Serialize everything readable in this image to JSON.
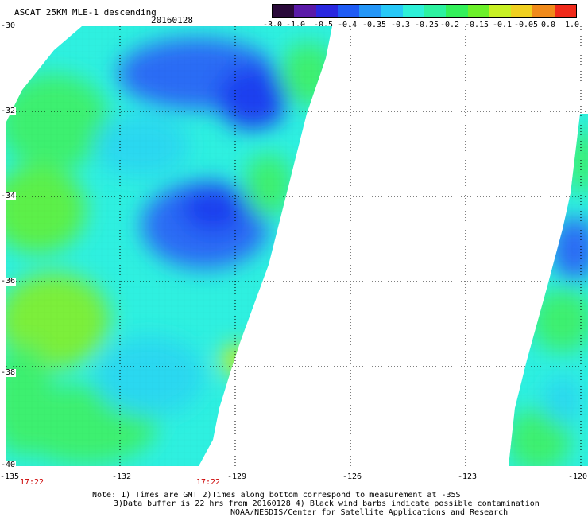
{
  "header": {
    "title": "ASCAT 25KM MLE-1 descending",
    "date": "20160128"
  },
  "colorbar": {
    "tick_labels": [
      "-3.0",
      "-1.0",
      "-0.5",
      "-0.4",
      "-0.35",
      "-0.3",
      "-0.25",
      "-0.2",
      "-0.15",
      "-0.1",
      "-0.05",
      "0.0",
      "1.0"
    ],
    "colors": [
      "#2a0a3a",
      "#5a1aa8",
      "#2a28e0",
      "#1f5cf5",
      "#2496f7",
      "#27c8f7",
      "#2ef0d8",
      "#2df2a0",
      "#34f05a",
      "#6cf02a",
      "#c8f024",
      "#f0d020",
      "#f08a1a",
      "#f02a1a"
    ]
  },
  "map": {
    "lat_labels": [
      "-30",
      "-32",
      "-34",
      "-36",
      "-38",
      "-40"
    ],
    "lon_labels": [
      "-135",
      "-132",
      "-129",
      "-126",
      "-123",
      "-120"
    ],
    "time_labels": [
      "17:22",
      "17:22"
    ],
    "units": "MLE",
    "lat_range": [
      -40,
      -30
    ],
    "lon_range": [
      -135,
      -120
    ]
  },
  "notes": {
    "line1": "Note: 1) Times are GMT 2)Times along bottom correspond to measurement at -35S",
    "line2": "3)Data buffer is 22 hrs from 20160128 4) Black wind barbs indicate possible contamination",
    "line3": "NOAA/NESDIS/Center for Satellite Applications and Research"
  }
}
